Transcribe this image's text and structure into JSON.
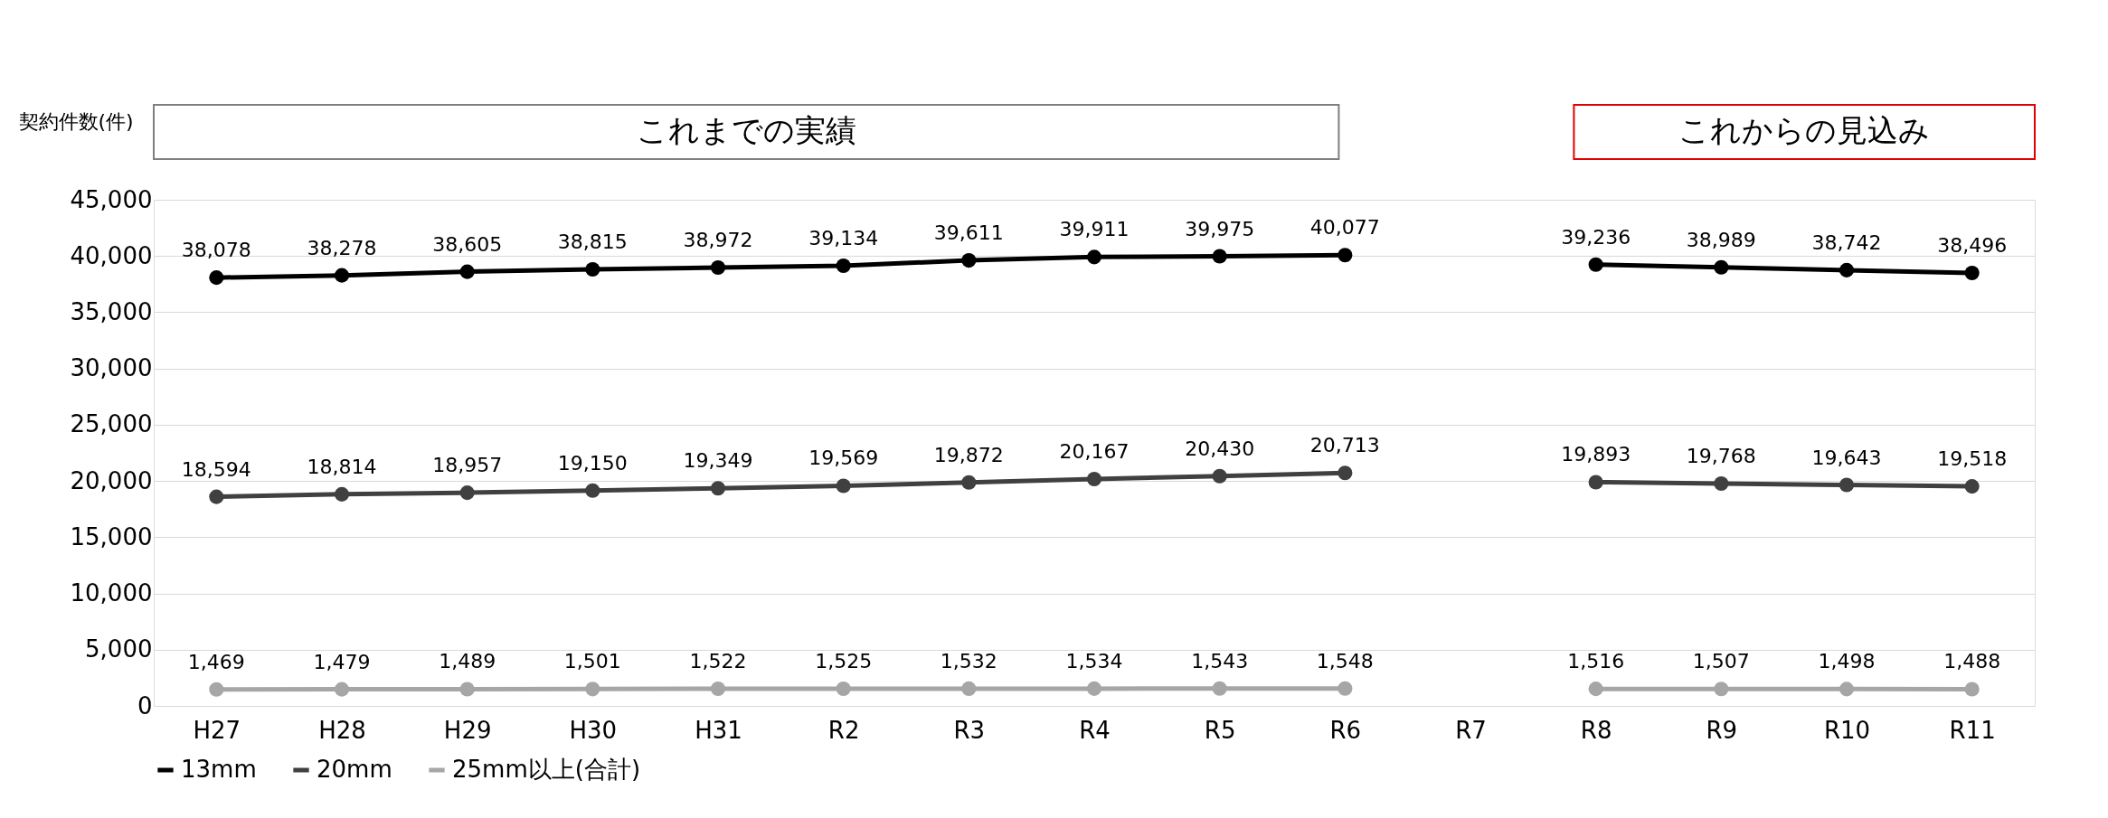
{
  "chart_data": {
    "type": "line",
    "ylabel": "契約件数(件)",
    "categories": [
      "H27",
      "H28",
      "H29",
      "H30",
      "H31",
      "R2",
      "R3",
      "R4",
      "R5",
      "R6",
      "R7",
      "R8",
      "R9",
      "R10",
      "R11"
    ],
    "series": [
      {
        "name": "13mm",
        "color": "#000000",
        "values": [
          38078,
          38278,
          38605,
          38815,
          38972,
          39134,
          39611,
          39911,
          39975,
          40077,
          null,
          39236,
          38989,
          38742,
          38496
        ],
        "value_labels": [
          "38,078",
          "38,278",
          "38,605",
          "38,815",
          "38,972",
          "39,134",
          "39,611",
          "39,911",
          "39,975",
          "40,077",
          null,
          "39,236",
          "38,989",
          "38,742",
          "38,496"
        ]
      },
      {
        "name": "20mm",
        "color": "#404040",
        "values": [
          18594,
          18814,
          18957,
          19150,
          19349,
          19569,
          19872,
          20167,
          20430,
          20713,
          null,
          19893,
          19768,
          19643,
          19518
        ],
        "value_labels": [
          "18,594",
          "18,814",
          "18,957",
          "19,150",
          "19,349",
          "19,569",
          "19,872",
          "20,167",
          "20,430",
          "20,713",
          null,
          "19,893",
          "19,768",
          "19,643",
          "19,518"
        ]
      },
      {
        "name": "25mm以上(合計)",
        "color": "#a6a6a6",
        "values": [
          1469,
          1479,
          1489,
          1501,
          1522,
          1525,
          1532,
          1534,
          1543,
          1548,
          null,
          1516,
          1507,
          1498,
          1488
        ],
        "value_labels": [
          "1,469",
          "1,479",
          "1,489",
          "1,501",
          "1,522",
          "1,525",
          "1,532",
          "1,534",
          "1,543",
          "1,548",
          null,
          "1,516",
          "1,507",
          "1,498",
          "1,488"
        ]
      }
    ],
    "ylim": [
      0,
      45000
    ],
    "yticks": [
      0,
      {
        "value": 5000,
        "label": "5,000"
      },
      {
        "value": 10000,
        "label": "10,000"
      },
      {
        "value": 15000,
        "label": "15,000"
      },
      {
        "value": 20000,
        "label": "20,000"
      },
      {
        "value": 25000,
        "label": "25,000"
      },
      {
        "value": 30000,
        "label": "30,000"
      },
      {
        "value": 35000,
        "label": "35,000"
      },
      {
        "value": 40000,
        "label": "40,000"
      },
      {
        "value": 45000,
        "label": "45,000"
      }
    ],
    "annotations": [
      "これまでの実績",
      "これからの見込み"
    ],
    "grid": "y",
    "legend": "bottom",
    "marker": "circle",
    "line_style": "solid"
  }
}
